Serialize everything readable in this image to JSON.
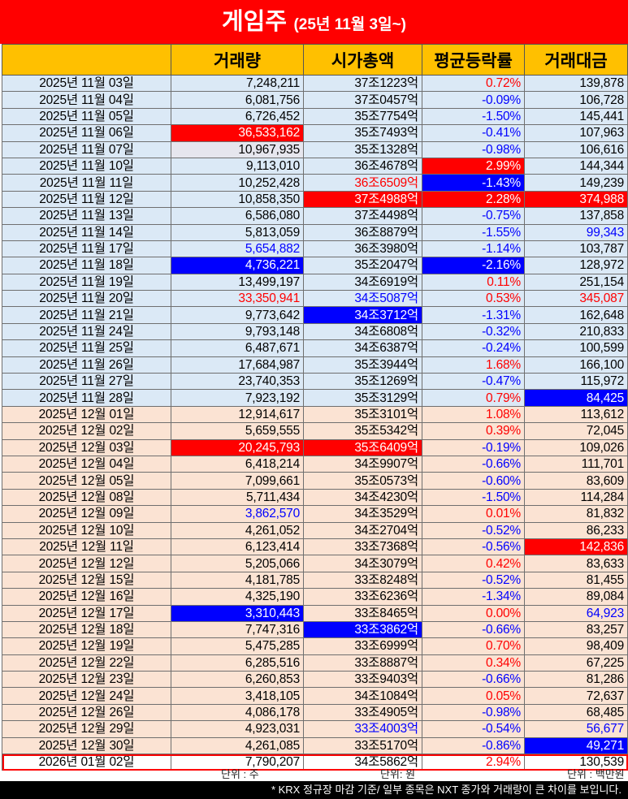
{
  "title": {
    "main": "게임주",
    "sub": "(25년 11월 3일~)"
  },
  "headers": [
    "",
    "거래량",
    "시가총액",
    "평균등락률",
    "거래대금"
  ],
  "rows": [
    {
      "date": "2025년 11월 03일",
      "volume": "7,248,211",
      "mcap": "37조1223억",
      "rate": "0.72%",
      "value": "139,878",
      "group": "nov"
    },
    {
      "date": "2025년 11월 04일",
      "volume": "6,081,756",
      "mcap": "37조0457억",
      "rate": "-0.09%",
      "value": "106,728",
      "group": "nov"
    },
    {
      "date": "2025년 11월 05일",
      "volume": "6,726,452",
      "mcap": "35조7754억",
      "rate": "-1.50%",
      "value": "145,441",
      "group": "nov"
    },
    {
      "date": "2025년 11월 06일",
      "volume": "36,533,162",
      "mcap": "35조7493억",
      "rate": "-0.41%",
      "value": "107,963",
      "group": "nov",
      "vs": "hl-red"
    },
    {
      "date": "2025년 11월 07일",
      "volume": "10,967,935",
      "mcap": "35조1328억",
      "rate": "-0.98%",
      "value": "106,616",
      "group": "nov",
      "vs": "light"
    },
    {
      "date": "2025년 11월 10일",
      "volume": "9,113,010",
      "mcap": "36조4678억",
      "rate": "2.99%",
      "value": "144,344",
      "group": "nov",
      "rs": "hl-red"
    },
    {
      "date": "2025년 11월 11일",
      "volume": "10,252,428",
      "mcap": "36조6509억",
      "rate": "-1.43%",
      "value": "149,239",
      "group": "nov",
      "ms": "t-red",
      "rs": "hl-blue"
    },
    {
      "date": "2025년 11월 12일",
      "volume": "10,858,350",
      "mcap": "37조4988억",
      "rate": "2.28%",
      "value": "374,988",
      "group": "nov",
      "ms": "hl-red",
      "rs": "hl-red",
      "ts": "hl-red"
    },
    {
      "date": "2025년 11월 13일",
      "volume": "6,586,080",
      "mcap": "37조4498억",
      "rate": "-0.75%",
      "value": "137,858",
      "group": "nov"
    },
    {
      "date": "2025년 11월 14일",
      "volume": "5,813,059",
      "mcap": "36조8879억",
      "rate": "-1.55%",
      "value": "99,343",
      "group": "nov",
      "ts": "t-blue"
    },
    {
      "date": "2025년 11월 17일",
      "volume": "5,654,882",
      "mcap": "36조3980억",
      "rate": "-1.14%",
      "value": "103,787",
      "group": "nov",
      "vs": "t-blue"
    },
    {
      "date": "2025년 11월 18일",
      "volume": "4,736,221",
      "mcap": "35조2047억",
      "rate": "-2.16%",
      "value": "128,972",
      "group": "nov",
      "vs": "hl-blue",
      "rs": "hl-blue"
    },
    {
      "date": "2025년 11월 19일",
      "volume": "13,499,197",
      "mcap": "34조6919억",
      "rate": "0.11%",
      "value": "251,154",
      "group": "nov"
    },
    {
      "date": "2025년 11월 20일",
      "volume": "33,350,941",
      "mcap": "34조5087억",
      "rate": "0.53%",
      "value": "345,087",
      "group": "nov",
      "vs": "t-red",
      "ms": "t-blue",
      "ts": "t-red"
    },
    {
      "date": "2025년 11월 21일",
      "volume": "9,773,642",
      "mcap": "34조3712억",
      "rate": "-1.31%",
      "value": "162,648",
      "group": "nov",
      "ms": "hl-blue"
    },
    {
      "date": "2025년 11월 24일",
      "volume": "9,793,148",
      "mcap": "34조6808억",
      "rate": "-0.32%",
      "value": "210,833",
      "group": "nov"
    },
    {
      "date": "2025년 11월 25일",
      "volume": "6,487,671",
      "mcap": "34조6387억",
      "rate": "-0.24%",
      "value": "100,599",
      "group": "nov"
    },
    {
      "date": "2025년 11월 26일",
      "volume": "17,684,987",
      "mcap": "35조3944억",
      "rate": "1.68%",
      "value": "166,100",
      "group": "nov"
    },
    {
      "date": "2025년 11월 27일",
      "volume": "23,740,353",
      "mcap": "35조1269억",
      "rate": "-0.47%",
      "value": "115,972",
      "group": "nov"
    },
    {
      "date": "2025년 11월 28일",
      "volume": "7,923,192",
      "mcap": "35조3129억",
      "rate": "0.79%",
      "value": "84,425",
      "group": "nov",
      "ts": "hl-blue"
    },
    {
      "date": "2025년 12월 01일",
      "volume": "12,914,617",
      "mcap": "35조3101억",
      "rate": "1.08%",
      "value": "113,612",
      "group": "dec"
    },
    {
      "date": "2025년 12월 02일",
      "volume": "5,659,555",
      "mcap": "35조5342억",
      "rate": "0.39%",
      "value": "72,045",
      "group": "dec"
    },
    {
      "date": "2025년 12월 03일",
      "volume": "20,245,793",
      "mcap": "35조6409억",
      "rate": "-0.19%",
      "value": "109,026",
      "group": "dec",
      "vs": "hl-red",
      "ms": "hl-red"
    },
    {
      "date": "2025년 12월 04일",
      "volume": "6,418,214",
      "mcap": "34조9907억",
      "rate": "-0.66%",
      "value": "111,701",
      "group": "dec"
    },
    {
      "date": "2025년 12월 05일",
      "volume": "7,099,661",
      "mcap": "35조0573억",
      "rate": "-0.60%",
      "value": "83,609",
      "group": "dec"
    },
    {
      "date": "2025년 12월 08일",
      "volume": "5,711,434",
      "mcap": "34조4230억",
      "rate": "-1.50%",
      "value": "114,284",
      "group": "dec"
    },
    {
      "date": "2025년 12월 09일",
      "volume": "3,862,570",
      "mcap": "34조3529억",
      "rate": "0.01%",
      "value": "81,832",
      "group": "dec",
      "vs": "t-blue"
    },
    {
      "date": "2025년 12월 10일",
      "volume": "4,261,052",
      "mcap": "34조2704억",
      "rate": "-0.52%",
      "value": "86,233",
      "group": "dec"
    },
    {
      "date": "2025년 12월 11일",
      "volume": "6,123,414",
      "mcap": "33조7368억",
      "rate": "-0.56%",
      "value": "142,836",
      "group": "dec",
      "ts": "hl-red"
    },
    {
      "date": "2025년 12월 12일",
      "volume": "5,205,066",
      "mcap": "34조3079억",
      "rate": "0.42%",
      "value": "83,633",
      "group": "dec"
    },
    {
      "date": "2025년 12월 15일",
      "volume": "4,181,785",
      "mcap": "33조8248억",
      "rate": "-0.52%",
      "value": "81,455",
      "group": "dec"
    },
    {
      "date": "2025년 12월 16일",
      "volume": "4,325,190",
      "mcap": "33조6236억",
      "rate": "-1.34%",
      "value": "89,084",
      "group": "dec"
    },
    {
      "date": "2025년 12월 17일",
      "volume": "3,310,443",
      "mcap": "33조8465억",
      "rate": "0.00%",
      "value": "64,923",
      "group": "dec",
      "vs": "hl-blue",
      "ts": "t-blue"
    },
    {
      "date": "2025년 12월 18일",
      "volume": "7,747,316",
      "mcap": "33조3862억",
      "rate": "-0.66%",
      "value": "83,257",
      "group": "dec",
      "ms": "hl-blue"
    },
    {
      "date": "2025년 12월 19일",
      "volume": "5,475,285",
      "mcap": "33조6999억",
      "rate": "0.70%",
      "value": "98,409",
      "group": "dec"
    },
    {
      "date": "2025년 12월 22일",
      "volume": "6,285,516",
      "mcap": "33조8887억",
      "rate": "0.34%",
      "value": "67,225",
      "group": "dec"
    },
    {
      "date": "2025년 12월 23일",
      "volume": "6,260,853",
      "mcap": "33조9403억",
      "rate": "-0.66%",
      "value": "81,286",
      "group": "dec"
    },
    {
      "date": "2025년 12월 24일",
      "volume": "3,418,105",
      "mcap": "34조1084억",
      "rate": "0.05%",
      "value": "72,637",
      "group": "dec"
    },
    {
      "date": "2025년 12월 26일",
      "volume": "4,086,178",
      "mcap": "33조4905억",
      "rate": "-0.98%",
      "value": "68,485",
      "group": "dec"
    },
    {
      "date": "2025년 12월 29일",
      "volume": "4,923,031",
      "mcap": "33조4003억",
      "rate": "-0.54%",
      "value": "56,677",
      "group": "dec",
      "ms": "t-blue",
      "ts": "t-blue"
    },
    {
      "date": "2025년 12월 30일",
      "volume": "4,261,085",
      "mcap": "33조5170억",
      "rate": "-0.86%",
      "value": "49,271",
      "group": "dec",
      "ts": "hl-blue"
    },
    {
      "date": "2026년 01월 02일",
      "volume": "7,790,207",
      "mcap": "34조5862억",
      "rate": "2.94%",
      "value": "130,539",
      "group": "jan"
    }
  ],
  "units": {
    "volume": "단위 : 주",
    "mcap": "단위: 원",
    "value": "단위 : 백만원"
  },
  "footnote": "* KRX 정규장 마감 기준/ 일부 종목은 NXT 종가와 거래량이 큰 차이를 보입니다.",
  "colors": {
    "title_bg": "#ff0000",
    "header_bg": "#ffc000",
    "nov_row": "#dbe9f6",
    "dec_row": "#fbe3d3",
    "up": "#ff0000",
    "down": "#0000ff"
  }
}
